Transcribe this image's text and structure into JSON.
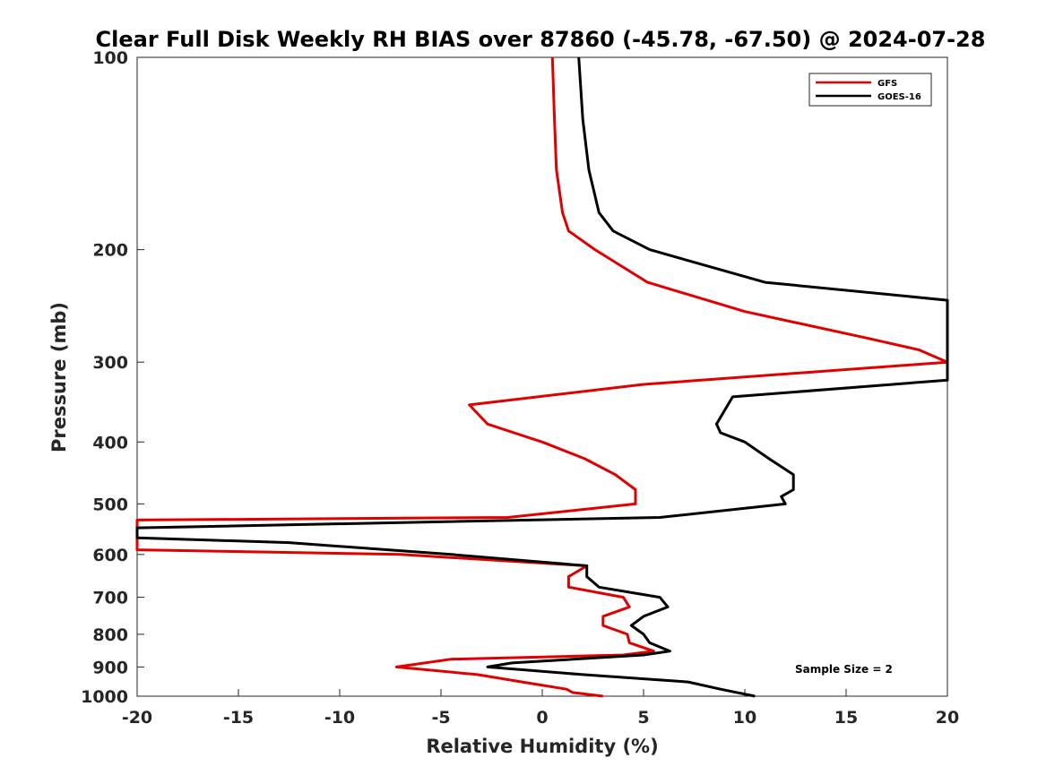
{
  "chart_data": {
    "type": "line",
    "title": "Clear Full Disk Weekly RH BIAS over 87860 (-45.78, -67.50) @ 2024-07-28",
    "xlabel": "Relative Humidity (%)",
    "ylabel": "Pressure (mb)",
    "xlim": [
      -20,
      20
    ],
    "ylim": [
      1000,
      100
    ],
    "y_scale": "log",
    "x_ticks": [
      "-20",
      "-15",
      "-10",
      "-5",
      "0",
      "5",
      "10",
      "15",
      "20"
    ],
    "y_ticks": [
      "100",
      "200",
      "300",
      "400",
      "500",
      "600",
      "700",
      "800",
      "900",
      "1000"
    ],
    "grid": false,
    "legend_position": "top-right",
    "annotation": "Sample Size = 2",
    "series": [
      {
        "name": "GFS",
        "color": "#e00000",
        "points": [
          [
            0.5,
            100
          ],
          [
            0.6,
            125
          ],
          [
            0.7,
            150
          ],
          [
            1.0,
            175
          ],
          [
            1.3,
            187
          ],
          [
            2.6,
            200
          ],
          [
            5.2,
            225
          ],
          [
            10.0,
            250
          ],
          [
            16.0,
            275
          ],
          [
            18.6,
            287
          ],
          [
            20.0,
            300
          ],
          [
            20.0,
            300
          ],
          [
            5.0,
            325
          ],
          [
            -3.6,
            350
          ],
          [
            -2.7,
            375
          ],
          [
            -1.4,
            387
          ],
          [
            0.0,
            400
          ],
          [
            2.1,
            425
          ],
          [
            3.6,
            450
          ],
          [
            4.6,
            475
          ],
          [
            4.6,
            500
          ],
          [
            -1.7,
            525
          ],
          [
            -20.0,
            530
          ],
          [
            -20.0,
            590
          ],
          [
            -7.0,
            600
          ],
          [
            2.2,
            625
          ],
          [
            1.3,
            650
          ],
          [
            1.3,
            675
          ],
          [
            4.0,
            700
          ],
          [
            4.3,
            725
          ],
          [
            3.0,
            750
          ],
          [
            3.0,
            775
          ],
          [
            4.2,
            800
          ],
          [
            4.3,
            825
          ],
          [
            5.5,
            850
          ],
          [
            4.0,
            862
          ],
          [
            -4.5,
            875
          ],
          [
            -7.2,
            900
          ],
          [
            -3.2,
            925
          ],
          [
            -1.0,
            950
          ],
          [
            1.2,
            975
          ],
          [
            1.5,
            987
          ],
          [
            3.0,
            1000
          ]
        ]
      },
      {
        "name": "GOES-16",
        "color": "#000000",
        "points": [
          [
            1.8,
            100
          ],
          [
            2.0,
            125
          ],
          [
            2.3,
            150
          ],
          [
            2.8,
            175
          ],
          [
            3.5,
            187
          ],
          [
            5.3,
            200
          ],
          [
            11.0,
            225
          ],
          [
            20.0,
            240
          ],
          [
            20.0,
            320
          ],
          [
            9.4,
            340
          ],
          [
            8.6,
            375
          ],
          [
            8.8,
            387
          ],
          [
            10.0,
            400
          ],
          [
            11.2,
            425
          ],
          [
            12.4,
            450
          ],
          [
            12.4,
            475
          ],
          [
            11.8,
            487
          ],
          [
            12.0,
            500
          ],
          [
            5.8,
            525
          ],
          [
            -20.0,
            545
          ],
          [
            -20.0,
            565
          ],
          [
            -12.5,
            575
          ],
          [
            -4.5,
            600
          ],
          [
            2.2,
            625
          ],
          [
            2.2,
            650
          ],
          [
            2.8,
            675
          ],
          [
            5.8,
            700
          ],
          [
            6.2,
            725
          ],
          [
            5.0,
            750
          ],
          [
            4.4,
            775
          ],
          [
            5.0,
            800
          ],
          [
            5.3,
            825
          ],
          [
            6.3,
            850
          ],
          [
            5.0,
            862
          ],
          [
            -1.5,
            887
          ],
          [
            -2.7,
            900
          ],
          [
            2.0,
            925
          ],
          [
            7.2,
            950
          ],
          [
            8.8,
            975
          ],
          [
            10.5,
            1000
          ]
        ]
      }
    ]
  }
}
